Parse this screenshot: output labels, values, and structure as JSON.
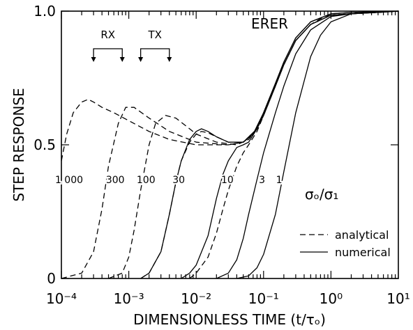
{
  "chart_data": {
    "type": "line",
    "title": "ERER",
    "xlabel": "DIMENSIONLESS TIME (t/τₒ)",
    "ylabel": "STEP RESPONSE",
    "x_scale": "log",
    "xlim": [
      0.0001,
      10
    ],
    "ylim": [
      0,
      1.0
    ],
    "x_ticks": [
      "10⁻⁴",
      "10⁻³",
      "10⁻²",
      "10⁻¹",
      "10⁰",
      "10¹"
    ],
    "y_ticks": [
      "0",
      "0.5",
      "1.0"
    ],
    "grid": false,
    "legend": {
      "placement": "bottom-right",
      "entries": [
        {
          "label": "analytical",
          "style": "dashed"
        },
        {
          "label": "numerical",
          "style": "solid"
        }
      ]
    },
    "parameter_label": "σₒ/σ₁",
    "group_labels": [
      {
        "text": "RX",
        "x_range": [
          0.0003,
          0.0008
        ]
      },
      {
        "text": "TX",
        "x_range": [
          0.0015,
          0.004
        ]
      }
    ],
    "curve_labels": [
      {
        "text": "1 000",
        "x": 0.00013,
        "y": 0.37
      },
      {
        "text": "300",
        "x": 0.00063,
        "y": 0.37
      },
      {
        "text": "100",
        "x": 0.0018,
        "y": 0.37
      },
      {
        "text": "30",
        "x": 0.0055,
        "y": 0.37
      },
      {
        "text": "10",
        "x": 0.029,
        "y": 0.37
      },
      {
        "text": "3",
        "x": 0.095,
        "y": 0.37
      },
      {
        "text": "1",
        "x": 0.17,
        "y": 0.37
      }
    ],
    "series": [
      {
        "ratio": "1 000",
        "style": "dashed",
        "x": [
          0.0001,
          0.00012,
          0.00015,
          0.0002,
          0.00025,
          0.0003,
          0.0004,
          0.0006,
          0.001,
          0.002,
          0.004,
          0.01,
          0.03,
          0.05,
          0.08,
          0.1,
          0.15,
          0.2,
          0.3,
          0.5,
          0.8,
          1.0,
          2.0,
          5.0,
          10.0
        ],
        "y": [
          0.44,
          0.54,
          0.62,
          0.66,
          0.67,
          0.66,
          0.64,
          0.62,
          0.59,
          0.55,
          0.52,
          0.5,
          0.5,
          0.51,
          0.56,
          0.61,
          0.72,
          0.8,
          0.89,
          0.95,
          0.98,
          0.985,
          0.99,
          0.995,
          1.0
        ]
      },
      {
        "ratio": "300",
        "style": "dashed",
        "x": [
          0.0001,
          0.0002,
          0.0003,
          0.0004,
          0.0005,
          0.0007,
          0.0009,
          0.0012,
          0.002,
          0.004,
          0.01,
          0.03,
          0.05,
          0.08,
          0.1,
          0.15,
          0.2,
          0.3,
          0.5,
          1.0,
          2.0,
          10.0
        ],
        "y": [
          0.0,
          0.02,
          0.1,
          0.26,
          0.42,
          0.58,
          0.64,
          0.64,
          0.6,
          0.55,
          0.51,
          0.5,
          0.51,
          0.56,
          0.61,
          0.72,
          0.8,
          0.89,
          0.95,
          0.985,
          0.99,
          1.0
        ]
      },
      {
        "ratio": "100",
        "style": "dashed",
        "x": [
          0.0005,
          0.0008,
          0.001,
          0.0012,
          0.0015,
          0.002,
          0.0025,
          0.0035,
          0.005,
          0.008,
          0.01,
          0.02,
          0.04,
          0.06,
          0.08,
          0.1,
          0.15,
          0.2,
          0.3,
          0.5,
          1.0,
          2.0,
          10.0
        ],
        "y": [
          0.0,
          0.02,
          0.08,
          0.18,
          0.33,
          0.5,
          0.58,
          0.61,
          0.6,
          0.56,
          0.54,
          0.51,
          0.5,
          0.52,
          0.56,
          0.61,
          0.72,
          0.8,
          0.89,
          0.95,
          0.985,
          0.99,
          1.0
        ]
      },
      {
        "ratio": "30",
        "style": "solid",
        "x": [
          0.0015,
          0.002,
          0.003,
          0.004,
          0.005,
          0.006,
          0.008,
          0.01,
          0.012,
          0.015,
          0.02,
          0.03,
          0.05,
          0.07,
          0.1,
          0.15,
          0.2,
          0.3,
          0.5,
          1.0,
          2.0,
          10.0
        ],
        "y": [
          0.0,
          0.02,
          0.1,
          0.24,
          0.36,
          0.44,
          0.52,
          0.55,
          0.56,
          0.55,
          0.53,
          0.51,
          0.51,
          0.54,
          0.62,
          0.73,
          0.81,
          0.9,
          0.96,
          0.99,
          0.995,
          1.0
        ]
      },
      {
        "ratio": "30",
        "style": "dashed",
        "x": [
          0.0015,
          0.002,
          0.003,
          0.004,
          0.005,
          0.006,
          0.008,
          0.01,
          0.012,
          0.015,
          0.02,
          0.03,
          0.05,
          0.07,
          0.1,
          0.15,
          0.2,
          0.3,
          0.5,
          1.0,
          2.0,
          10.0
        ],
        "y": [
          0.0,
          0.02,
          0.1,
          0.24,
          0.36,
          0.44,
          0.51,
          0.54,
          0.55,
          0.545,
          0.53,
          0.51,
          0.51,
          0.54,
          0.61,
          0.72,
          0.8,
          0.89,
          0.95,
          0.985,
          0.99,
          1.0
        ]
      },
      {
        "ratio": "10",
        "style": "solid",
        "x": [
          0.006,
          0.008,
          0.01,
          0.015,
          0.02,
          0.025,
          0.03,
          0.04,
          0.05,
          0.06,
          0.08,
          0.1,
          0.15,
          0.2,
          0.3,
          0.5,
          1.0,
          2.0,
          10.0
        ],
        "y": [
          0.0,
          0.02,
          0.05,
          0.16,
          0.3,
          0.39,
          0.44,
          0.49,
          0.5,
          0.51,
          0.56,
          0.62,
          0.73,
          0.81,
          0.9,
          0.96,
          0.99,
          0.995,
          1.0
        ]
      },
      {
        "ratio": "10",
        "style": "dashed",
        "x": [
          0.008,
          0.01,
          0.015,
          0.02,
          0.025,
          0.03,
          0.04,
          0.05,
          0.06,
          0.08,
          0.1,
          0.15,
          0.2,
          0.3,
          0.5,
          1.0,
          2.0,
          10.0
        ],
        "y": [
          0.0,
          0.02,
          0.08,
          0.17,
          0.26,
          0.33,
          0.42,
          0.47,
          0.5,
          0.55,
          0.61,
          0.72,
          0.8,
          0.89,
          0.95,
          0.985,
          0.99,
          1.0
        ]
      },
      {
        "ratio": "3",
        "style": "solid",
        "x": [
          0.02,
          0.03,
          0.04,
          0.05,
          0.06,
          0.08,
          0.1,
          0.15,
          0.2,
          0.3,
          0.5,
          1.0,
          2.0,
          10.0
        ],
        "y": [
          0.0,
          0.02,
          0.07,
          0.15,
          0.24,
          0.37,
          0.47,
          0.62,
          0.72,
          0.84,
          0.93,
          0.98,
          0.99,
          1.0
        ]
      },
      {
        "ratio": "1",
        "style": "solid",
        "x": [
          0.04,
          0.06,
          0.08,
          0.1,
          0.15,
          0.2,
          0.3,
          0.5,
          0.7,
          1.0,
          2.0,
          5.0,
          10.0
        ],
        "y": [
          0.0,
          0.01,
          0.04,
          0.09,
          0.24,
          0.4,
          0.62,
          0.83,
          0.91,
          0.96,
          0.99,
          0.995,
          1.0
        ]
      }
    ]
  }
}
